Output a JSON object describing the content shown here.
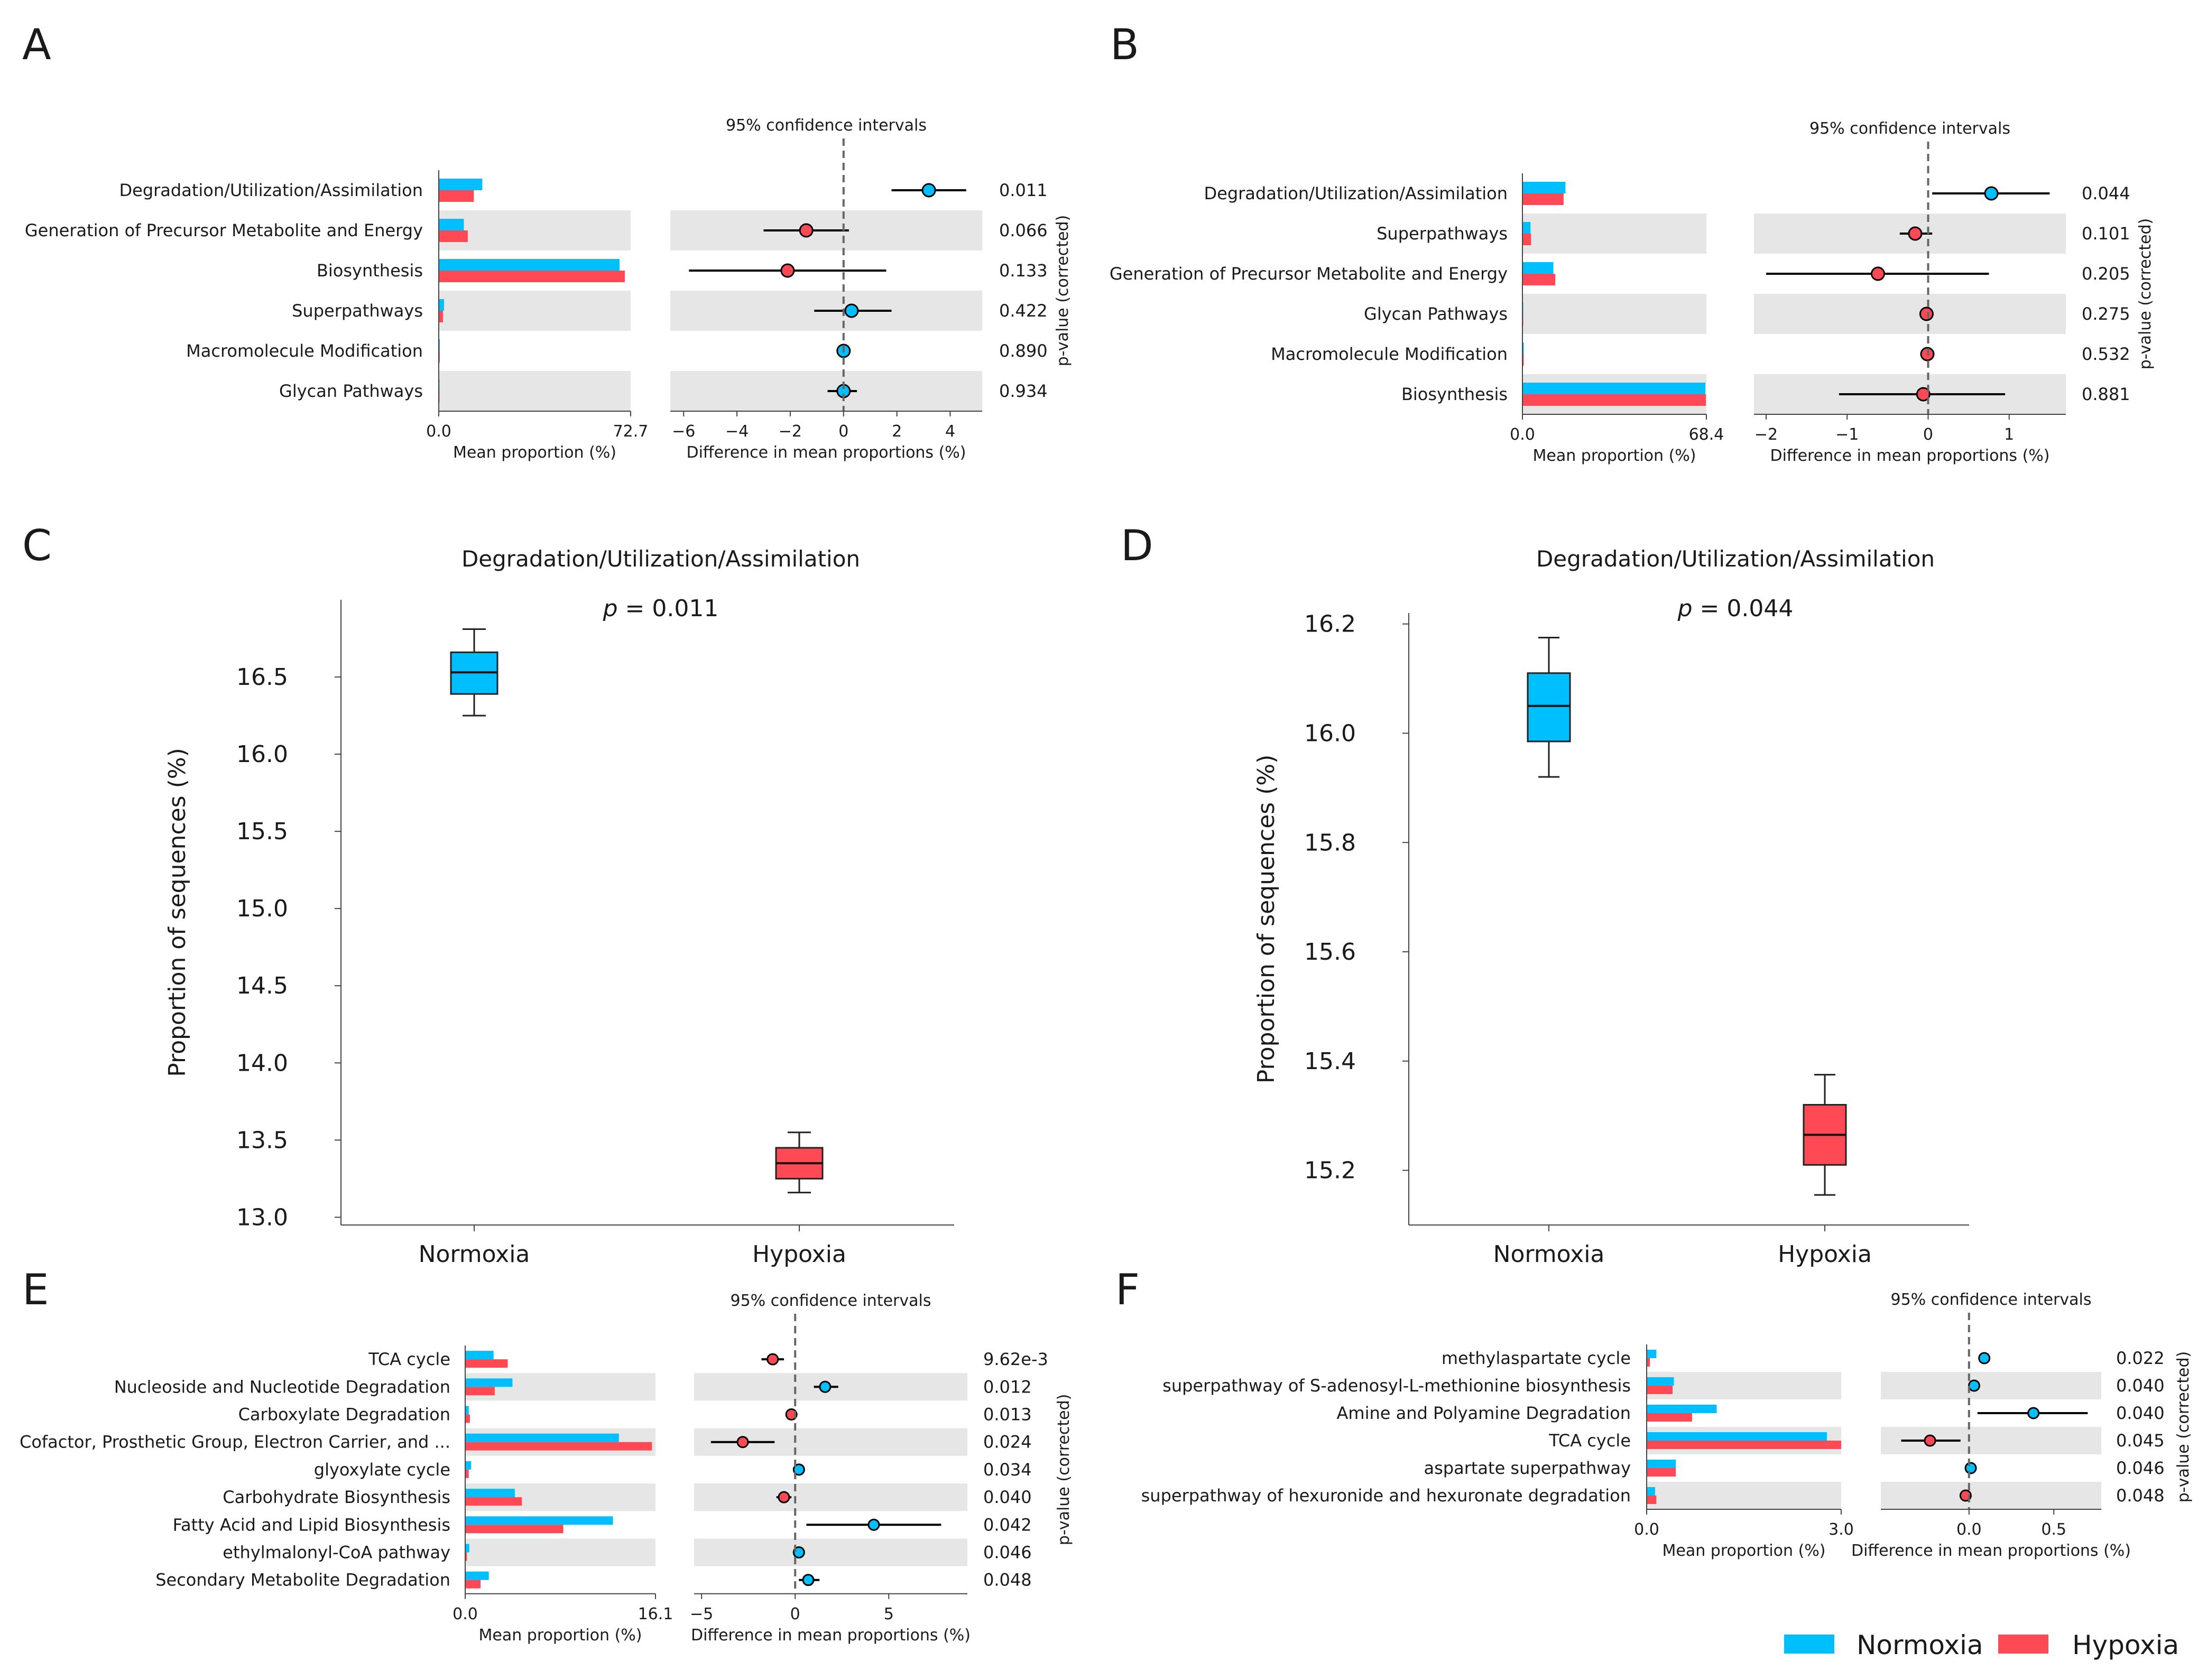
{
  "legend": {
    "items": [
      {
        "label": "Normoxia",
        "color": "#00BFFF"
      },
      {
        "label": "Hypoxia",
        "color": "#FF4A55"
      }
    ]
  },
  "chart_data": [
    {
      "panel": "A",
      "type": "bar",
      "subtype": "extended_error_bar",
      "ci_title": "95% confidence intervals",
      "mean_xlabel": "Mean proportion (%)",
      "diff_xlabel": "Difference in mean proportions (%)",
      "pvalue_label": "p-value (corrected)",
      "mean_max": 72.7,
      "mean_tick_labels": [
        "0.0",
        "72.7"
      ],
      "diff_range": [
        -6.5,
        5.2
      ],
      "diff_ticks": [
        -6,
        -4,
        -2,
        0,
        2,
        4
      ],
      "rows": [
        {
          "label": "Degradation/Utilization/Assimilation",
          "normoxia": 16.5,
          "hypoxia": 13.3,
          "diff": 3.2,
          "lo": 1.8,
          "hi": 4.6,
          "p": "0.011"
        },
        {
          "label": "Generation of Precursor Metabolite and Energy",
          "normoxia": 9.5,
          "hypoxia": 11.0,
          "diff": -1.4,
          "lo": -3.0,
          "hi": 0.2,
          "p": "0.066"
        },
        {
          "label": "Biosynthesis",
          "normoxia": 68.5,
          "hypoxia": 70.5,
          "diff": -2.1,
          "lo": -5.8,
          "hi": 1.6,
          "p": "0.133"
        },
        {
          "label": "Superpathways",
          "normoxia": 2.0,
          "hypoxia": 1.6,
          "diff": 0.3,
          "lo": -1.1,
          "hi": 1.8,
          "p": "0.422"
        },
        {
          "label": "Macromolecule Modification",
          "normoxia": 0.4,
          "hypoxia": 0.4,
          "diff": 0.0,
          "lo": -0.1,
          "hi": 0.1,
          "p": "0.890"
        },
        {
          "label": "Glycan Pathways",
          "normoxia": 0.3,
          "hypoxia": 0.3,
          "diff": 0.0,
          "lo": -0.6,
          "hi": 0.5,
          "p": "0.934"
        }
      ]
    },
    {
      "panel": "B",
      "type": "bar",
      "subtype": "extended_error_bar",
      "ci_title": "95% confidence intervals",
      "mean_xlabel": "Mean proportion (%)",
      "diff_xlabel": "Difference in mean proportions (%)",
      "pvalue_label": "p-value (corrected)",
      "mean_max": 68.4,
      "mean_tick_labels": [
        "0.0",
        "68.4"
      ],
      "diff_range": [
        -2.15,
        1.7
      ],
      "diff_ticks": [
        -2,
        -1,
        0,
        1
      ],
      "rows": [
        {
          "label": "Degradation/Utilization/Assimilation",
          "normoxia": 16.0,
          "hypoxia": 15.3,
          "diff": 0.78,
          "lo": 0.05,
          "hi": 1.5,
          "p": "0.044"
        },
        {
          "label": "Superpathways",
          "normoxia": 3.0,
          "hypoxia": 3.2,
          "diff": -0.16,
          "lo": -0.35,
          "hi": 0.05,
          "p": "0.101"
        },
        {
          "label": "Generation of Precursor Metabolite and Energy",
          "normoxia": 11.5,
          "hypoxia": 12.2,
          "diff": -0.62,
          "lo": -2.0,
          "hi": 0.75,
          "p": "0.205"
        },
        {
          "label": "Glycan Pathways",
          "normoxia": 0.3,
          "hypoxia": 0.3,
          "diff": -0.02,
          "lo": -0.04,
          "hi": 0.0,
          "p": "0.275"
        },
        {
          "label": "Macromolecule Modification",
          "normoxia": 0.5,
          "hypoxia": 0.5,
          "diff": -0.01,
          "lo": -0.03,
          "hi": 0.01,
          "p": "0.532"
        },
        {
          "label": "Biosynthesis",
          "normoxia": 68.0,
          "hypoxia": 68.2,
          "diff": -0.06,
          "lo": -1.1,
          "hi": 0.95,
          "p": "0.881"
        }
      ]
    },
    {
      "panel": "C",
      "type": "box",
      "title": "Degradation/Utilization/Assimilation",
      "p_prefix": "p",
      "p_value": " = 0.011",
      "ylabel": "Proportion of sequences (%)",
      "ylim": [
        12.95,
        17.0
      ],
      "yticks": [
        "13.0",
        "13.5",
        "14.0",
        "14.5",
        "15.0",
        "15.5",
        "16.0",
        "16.5"
      ],
      "categories": [
        "Normoxia",
        "Hypoxia"
      ],
      "boxes": [
        {
          "group": "Normoxia",
          "whisker_low": 16.25,
          "q1": 16.39,
          "median": 16.53,
          "q3": 16.66,
          "whisker_high": 16.81
        },
        {
          "group": "Hypoxia",
          "whisker_low": 13.16,
          "q1": 13.25,
          "median": 13.35,
          "q3": 13.45,
          "whisker_high": 13.55
        }
      ]
    },
    {
      "panel": "D",
      "type": "box",
      "title": "Degradation/Utilization/Assimilation",
      "p_prefix": "p",
      "p_value": " = 0.044",
      "ylabel": "Proportion of sequences (%)",
      "ylim": [
        15.1,
        16.22
      ],
      "yticks": [
        "15.2",
        "15.4",
        "15.6",
        "15.8",
        "16.0",
        "16.2"
      ],
      "categories": [
        "Normoxia",
        "Hypoxia"
      ],
      "boxes": [
        {
          "group": "Normoxia",
          "whisker_low": 15.92,
          "q1": 15.985,
          "median": 16.05,
          "q3": 16.11,
          "whisker_high": 16.175
        },
        {
          "group": "Hypoxia",
          "whisker_low": 15.155,
          "q1": 15.21,
          "median": 15.265,
          "q3": 15.32,
          "whisker_high": 15.375
        }
      ]
    },
    {
      "panel": "E",
      "type": "bar",
      "subtype": "extended_error_bar",
      "ci_title": "95% confidence intervals",
      "mean_xlabel": "Mean proportion (%)",
      "diff_xlabel": "Difference in mean proportions (%)",
      "pvalue_label": "p-value (corrected)",
      "mean_max": 16.1,
      "mean_tick_labels": [
        "0.0",
        "16.1"
      ],
      "diff_range": [
        -5.4,
        9.2
      ],
      "diff_ticks": [
        -5,
        0,
        5
      ],
      "rows": [
        {
          "label": "TCA cycle",
          "normoxia": 2.4,
          "hypoxia": 3.6,
          "diff": -1.2,
          "lo": -1.8,
          "hi": -0.6,
          "p": "9.62e-3"
        },
        {
          "label": "Nucleoside and Nucleotide Degradation",
          "normoxia": 4.0,
          "hypoxia": 2.5,
          "diff": 1.6,
          "lo": 1.0,
          "hi": 2.3,
          "p": "0.012"
        },
        {
          "label": "Carboxylate Degradation",
          "normoxia": 0.3,
          "hypoxia": 0.4,
          "diff": -0.2,
          "lo": -0.4,
          "hi": 0.0,
          "p": "0.013"
        },
        {
          "label": "Cofactor, Prosthetic Group, Electron Carrier, and ...",
          "normoxia": 13.0,
          "hypoxia": 15.8,
          "diff": -2.8,
          "lo": -4.5,
          "hi": -1.1,
          "p": "0.024"
        },
        {
          "label": "glyoxylate cycle",
          "normoxia": 0.5,
          "hypoxia": 0.3,
          "diff": 0.2,
          "lo": 0.1,
          "hi": 0.3,
          "p": "0.034"
        },
        {
          "label": "Carbohydrate Biosynthesis",
          "normoxia": 4.2,
          "hypoxia": 4.8,
          "diff": -0.6,
          "lo": -1.0,
          "hi": -0.2,
          "p": "0.040"
        },
        {
          "label": "Fatty Acid and Lipid Biosynthesis",
          "normoxia": 12.5,
          "hypoxia": 8.3,
          "diff": 4.2,
          "lo": 0.6,
          "hi": 7.8,
          "p": "0.042"
        },
        {
          "label": "ethylmalonyl-CoA pathway",
          "normoxia": 0.35,
          "hypoxia": 0.15,
          "diff": 0.2,
          "lo": 0.1,
          "hi": 0.3,
          "p": "0.046"
        },
        {
          "label": "Secondary Metabolite Degradation",
          "normoxia": 2.0,
          "hypoxia": 1.3,
          "diff": 0.7,
          "lo": 0.2,
          "hi": 1.3,
          "p": "0.048"
        }
      ]
    },
    {
      "panel": "F",
      "type": "bar",
      "subtype": "extended_error_bar",
      "ci_title": "95% confidence intervals",
      "mean_xlabel": "Mean proportion (%)",
      "diff_xlabel": "Difference in mean proportions (%)",
      "pvalue_label": "p-value (corrected)",
      "mean_max": 3.0,
      "mean_tick_labels": [
        "0.0",
        "3.0"
      ],
      "diff_range": [
        -0.52,
        0.78
      ],
      "diff_ticks": [
        {
          "v": 0,
          "label": "0.0"
        },
        {
          "v": 0.5,
          "label": "0.5"
        }
      ],
      "rows": [
        {
          "label": "methylaspartate cycle",
          "normoxia": 0.15,
          "hypoxia": 0.05,
          "diff": 0.09,
          "lo": 0.06,
          "hi": 0.12,
          "p": "0.022"
        },
        {
          "label": "superpathway of S-adenosyl-L-methionine biosynthesis",
          "normoxia": 0.42,
          "hypoxia": 0.4,
          "diff": 0.03,
          "lo": 0.0,
          "hi": 0.06,
          "p": "0.040"
        },
        {
          "label": "Amine and Polyamine Degradation",
          "normoxia": 1.08,
          "hypoxia": 0.7,
          "diff": 0.38,
          "lo": 0.05,
          "hi": 0.7,
          "p": "0.040"
        },
        {
          "label": "TCA cycle",
          "normoxia": 2.78,
          "hypoxia": 3.0,
          "diff": -0.23,
          "lo": -0.4,
          "hi": -0.05,
          "p": "0.045"
        },
        {
          "label": "aspartate superpathway",
          "normoxia": 0.45,
          "hypoxia": 0.45,
          "diff": 0.01,
          "lo": -0.01,
          "hi": 0.03,
          "p": "0.046"
        },
        {
          "label": "superpathway of hexuronide and hexuronate degradation",
          "normoxia": 0.13,
          "hypoxia": 0.15,
          "diff": -0.02,
          "lo": -0.04,
          "hi": 0.0,
          "p": "0.048"
        }
      ]
    }
  ]
}
